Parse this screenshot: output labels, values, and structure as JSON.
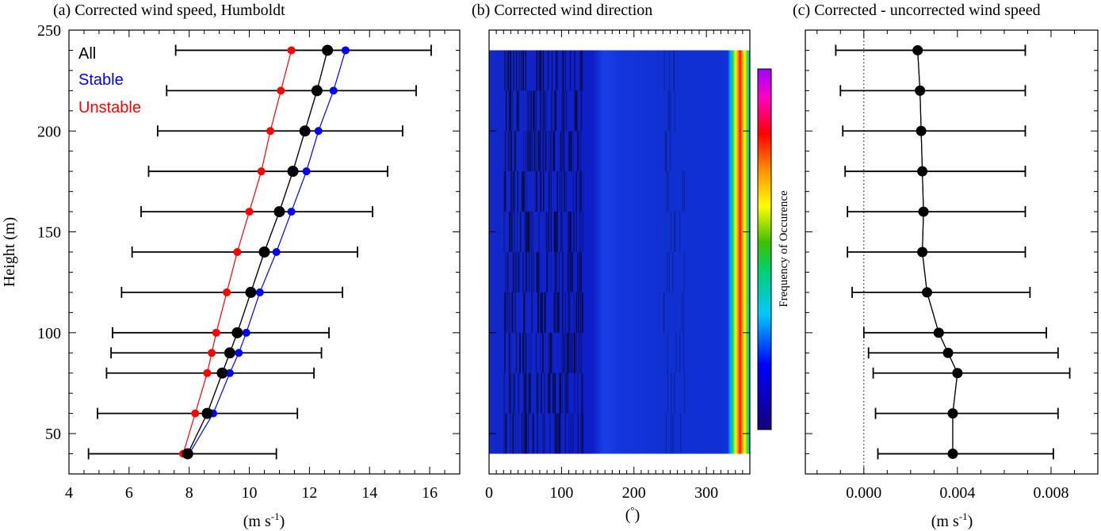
{
  "panels": {
    "a_title": "(a) Corrected wind speed, Humboldt",
    "b_title": "(b) Corrected wind direction",
    "c_title": "(c) Corrected - uncorrected wind speed",
    "ylabel": "Height (m)",
    "a_xlabel": "(m s",
    "a_xlabel_sup": "-1",
    "a_xlabel_end": ")",
    "b_xlabel": "(",
    "b_xlabel_sup": "°",
    "b_xlabel_end": ")",
    "c_xlabel": "(m s",
    "c_xlabel_sup": "-1",
    "c_xlabel_end": ")",
    "colorbar_label": "Frequency of Occurence"
  },
  "legend": {
    "all": "All",
    "stable": "Stable",
    "unstable": "Unstable"
  },
  "colors": {
    "all": "#000000",
    "stable": "#0000ff",
    "unstable": "#ff0000"
  },
  "chart_data": [
    {
      "type": "line",
      "title": "(a) Corrected wind speed, Humboldt",
      "xlabel": "(m s-1)",
      "ylabel": "Height (m)",
      "xlim": [
        4,
        17
      ],
      "ylim": [
        30,
        250
      ],
      "xticks": [
        4,
        6,
        8,
        10,
        12,
        14,
        16
      ],
      "yticks": [
        50,
        100,
        150,
        200,
        250
      ],
      "heights": [
        40,
        60,
        80,
        90,
        100,
        120,
        140,
        160,
        180,
        200,
        220,
        240
      ],
      "series": [
        {
          "name": "All",
          "values": [
            7.95,
            8.6,
            9.1,
            9.35,
            9.6,
            10.05,
            10.5,
            11.0,
            11.45,
            11.85,
            12.25,
            12.6
          ],
          "err_low": [
            4.65,
            4.95,
            5.25,
            5.4,
            5.45,
            5.75,
            6.1,
            6.4,
            6.65,
            6.95,
            7.25,
            7.55
          ],
          "err_high": [
            10.9,
            11.6,
            12.15,
            12.4,
            12.65,
            13.1,
            13.6,
            14.1,
            14.6,
            15.1,
            15.55,
            16.05
          ]
        },
        {
          "name": "Stable",
          "values": [
            8.0,
            8.8,
            9.35,
            9.65,
            9.9,
            10.35,
            10.9,
            11.4,
            11.9,
            12.3,
            12.8,
            13.2
          ]
        },
        {
          "name": "Unstable",
          "values": [
            7.8,
            8.2,
            8.6,
            8.75,
            8.9,
            9.25,
            9.6,
            10.0,
            10.4,
            10.7,
            11.05,
            11.4
          ]
        }
      ]
    },
    {
      "type": "heatmap",
      "title": "(b) Corrected wind direction",
      "xlabel": "(°)",
      "xlim": [
        0,
        360
      ],
      "ylim": [
        30,
        250
      ],
      "xticks": [
        0,
        100,
        200,
        300
      ],
      "height_range": [
        40,
        240
      ],
      "peak_direction_deg": 345,
      "colorbar_label": "Frequency of Occurence"
    },
    {
      "type": "line",
      "title": "(c) Corrected - uncorrected wind speed",
      "xlabel": "(m s-1)",
      "xlim": [
        -0.0025,
        0.01
      ],
      "ylim": [
        30,
        250
      ],
      "xticks": [
        0.0,
        0.004,
        0.008
      ],
      "xtick_labels": [
        "0.000",
        "0.004",
        "0.008"
      ],
      "heights": [
        40,
        60,
        80,
        90,
        100,
        120,
        140,
        160,
        180,
        200,
        220,
        240
      ],
      "series": [
        {
          "name": "All",
          "values": [
            0.0038,
            0.0038,
            0.004,
            0.0036,
            0.0032,
            0.0027,
            0.0025,
            0.00255,
            0.0025,
            0.00245,
            0.0024,
            0.0023
          ],
          "err_low": [
            0.0006,
            0.0005,
            0.0004,
            0.0002,
            0.0,
            -0.0005,
            -0.0007,
            -0.0007,
            -0.0008,
            -0.0009,
            -0.001,
            -0.0012
          ],
          "err_high": [
            0.0081,
            0.0083,
            0.0088,
            0.0083,
            0.0078,
            0.0071,
            0.0069,
            0.0069,
            0.0069,
            0.0069,
            0.0069,
            0.0069
          ]
        }
      ]
    }
  ]
}
